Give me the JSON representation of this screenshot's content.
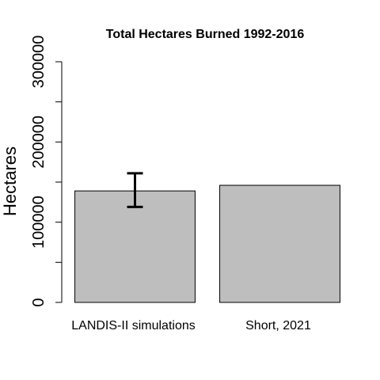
{
  "chart_data": {
    "type": "bar",
    "title": "Total Hectares Burned 1992-2016",
    "xlabel": "",
    "ylabel": "Hectares",
    "categories": [
      "LANDIS-II simulations",
      "Short, 2021"
    ],
    "values": [
      139000,
      146000
    ],
    "error_bars": [
      {
        "low": 119000,
        "high": 161000
      },
      null
    ],
    "ylim": [
      0,
      300000
    ],
    "yticks": [
      0,
      100000,
      200000,
      300000
    ],
    "ytick_labels": [
      "0",
      "100000",
      "200000",
      "300000"
    ],
    "grid": false,
    "colors": {
      "bar_fill": "#bebebe",
      "bar_stroke": "#000000",
      "axis": "#000000",
      "error_bar": "#000000"
    }
  }
}
